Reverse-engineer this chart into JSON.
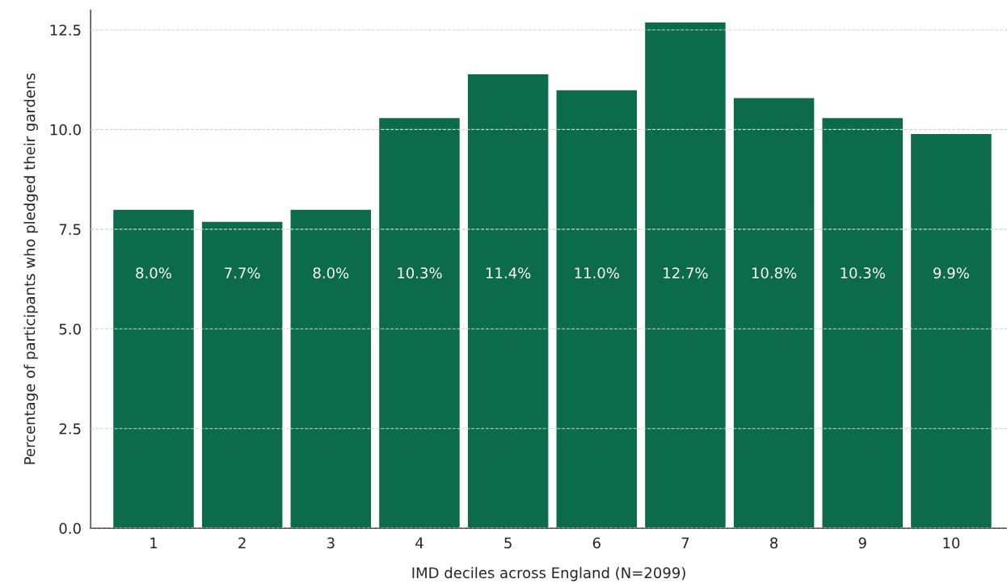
{
  "chart_data": {
    "type": "bar",
    "xlabel": "IMD deciles across England (N=2099)",
    "ylabel": "Percentage of participants who pledged their gardens",
    "categories": [
      "1",
      "2",
      "3",
      "4",
      "5",
      "6",
      "7",
      "8",
      "9",
      "10"
    ],
    "values": [
      8.0,
      7.7,
      8.0,
      10.3,
      11.4,
      11.0,
      12.7,
      10.8,
      10.3,
      9.9
    ],
    "value_labels": [
      "8.0%",
      "7.7%",
      "8.0%",
      "10.3%",
      "11.4%",
      "11.0%",
      "12.7%",
      "10.8%",
      "10.3%",
      "9.9%"
    ],
    "color": "#0b6b4b",
    "ylim": [
      0,
      13
    ],
    "yticks": [
      {
        "value": 0,
        "label": "0.0"
      },
      2.5,
      {
        "value": 5,
        "label": "5.0"
      },
      7.5,
      {
        "value": 10,
        "label": "10.0"
      },
      12.5
    ],
    "grid": "y",
    "legend": false
  }
}
